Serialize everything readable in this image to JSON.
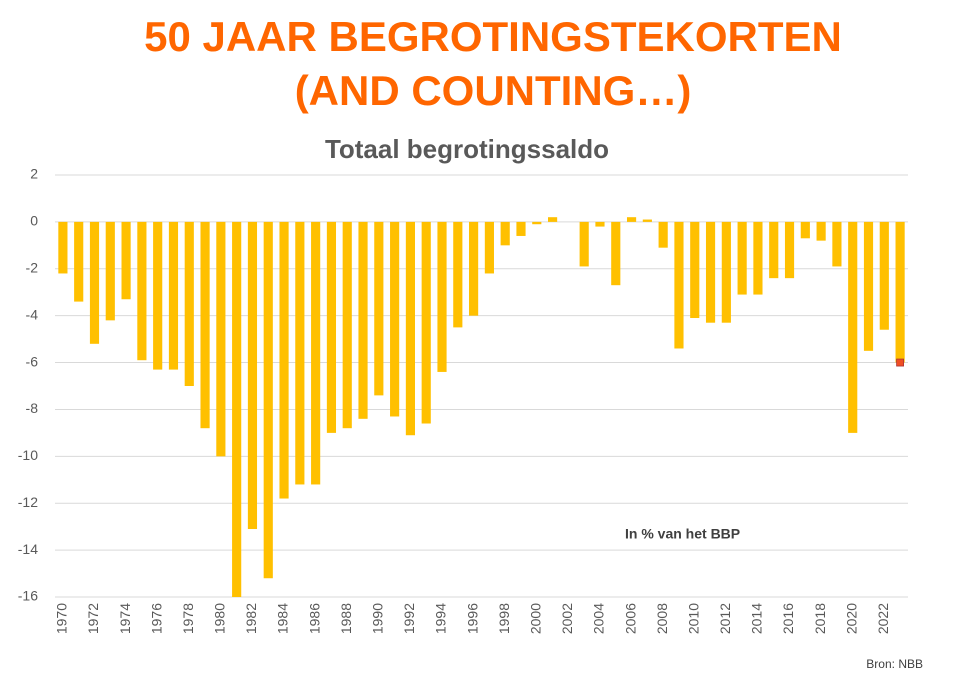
{
  "chart_data": {
    "type": "bar",
    "title": [
      "50 JAAR BEGROTINGSTEKORTEN",
      "(AND COUNTING…)"
    ],
    "subtitle": "Totaal begrotingssaldo",
    "annotation": "In % van het BBP",
    "source": "Bron: NBB",
    "categories": [
      "1970",
      null,
      "1972",
      null,
      "1974",
      null,
      "1976",
      null,
      "1978",
      null,
      "1980",
      null,
      "1982",
      null,
      "1984",
      null,
      "1986",
      null,
      "1988",
      null,
      "1990",
      null,
      "1992",
      null,
      "1994",
      null,
      "1996",
      null,
      "1998",
      null,
      "2000",
      null,
      "2002",
      null,
      "2004",
      null,
      "2006",
      null,
      "2008",
      null,
      "2010",
      null,
      "2012",
      null,
      "2014",
      null,
      "2016",
      null,
      "2018",
      null,
      "2020",
      null,
      "2022",
      null
    ],
    "values": [
      -2.2,
      -3.4,
      -5.2,
      -4.2,
      -3.3,
      -5.9,
      -6.3,
      -6.3,
      -7.0,
      -8.8,
      -10.0,
      -16.0,
      -13.1,
      -15.2,
      -11.8,
      -11.2,
      -11.2,
      -9.0,
      -8.8,
      -8.4,
      -7.4,
      -8.3,
      -9.1,
      -8.6,
      -6.4,
      -4.5,
      -4.0,
      -2.2,
      -1.0,
      -0.6,
      -0.1,
      0.2,
      0.0,
      -1.9,
      -0.2,
      -2.7,
      0.2,
      0.1,
      -1.1,
      -5.4,
      -4.1,
      -4.3,
      -4.3,
      -3.1,
      -3.1,
      -2.4,
      -2.4,
      -0.7,
      -0.8,
      -1.9,
      -9.0,
      -5.5,
      -4.6,
      -6.0
    ],
    "color": "#ffc000",
    "last_marker_color": "#f04e23",
    "ylim": [
      -16,
      2
    ],
    "yticks": [
      -16,
      -14,
      -12,
      -10,
      -8,
      -6,
      -4,
      -2,
      0,
      2
    ],
    "grid": true
  }
}
